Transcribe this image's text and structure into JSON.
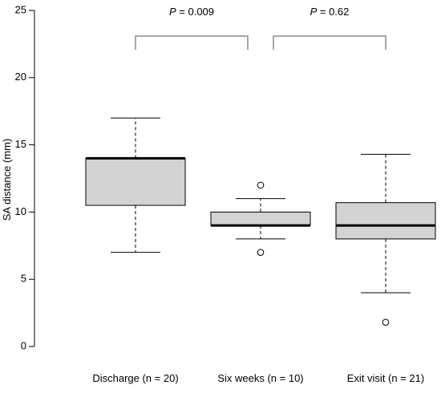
{
  "chart_data": {
    "type": "box",
    "ylabel": "SA distance (mm)",
    "ylim": [
      0,
      25
    ],
    "yticks": [
      "0",
      "5",
      "10",
      "15",
      "20",
      "25"
    ],
    "grid": false,
    "box_fill": "#d3d3d3",
    "bracket_color": "#a8a8a8",
    "groups": [
      {
        "label": "Discharge (n = 20)",
        "whisker_low": 7,
        "q1": 10.5,
        "median": 14,
        "q3": 14,
        "whisker_high": 17,
        "outliers": []
      },
      {
        "label": "Six weeks (n = 10)",
        "whisker_low": 8,
        "q1": 9,
        "median": 9,
        "q3": 10,
        "whisker_high": 11,
        "outliers": [
          7,
          12
        ]
      },
      {
        "label": "Exit visit (n = 21)",
        "whisker_low": 4,
        "q1": 8,
        "median": 9,
        "q3": 10.7,
        "whisker_high": 14.3,
        "outliers": [
          1.8
        ]
      }
    ],
    "comparisons": [
      {
        "from": 0,
        "to": 1,
        "p_prefix": "P",
        "p_value": " = 0.009"
      },
      {
        "from": 1,
        "to": 2,
        "p_prefix": "P",
        "p_value": " = 0.62"
      }
    ]
  }
}
